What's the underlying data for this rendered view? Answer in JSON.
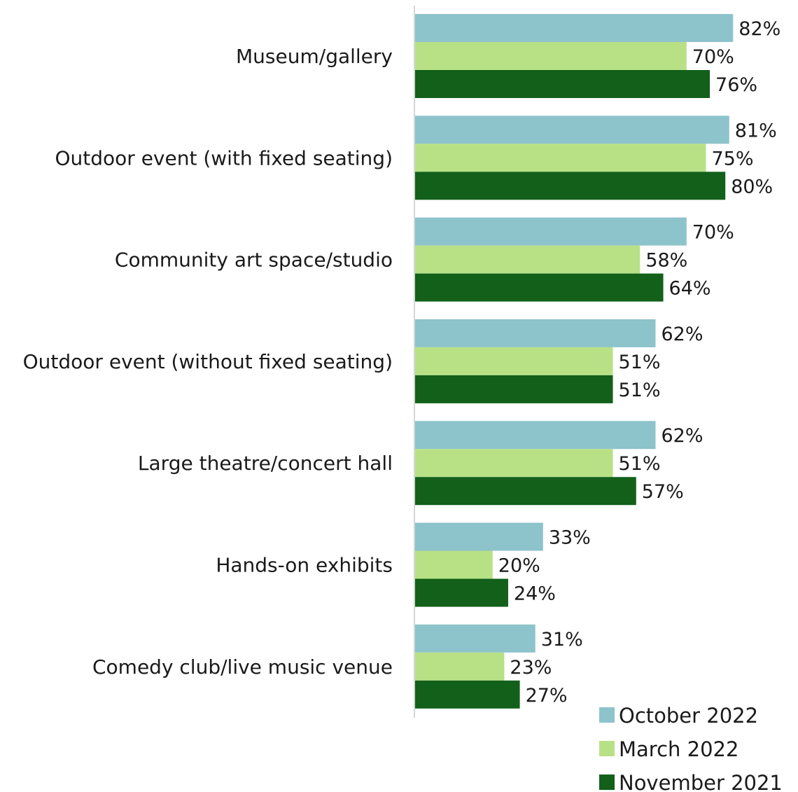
{
  "chart_data": {
    "type": "bar",
    "orientation": "horizontal",
    "categories": [
      "Museum/gallery",
      "Outdoor event (with fixed seating)",
      "Community art space/studio",
      "Outdoor event (without fixed seating)",
      "Large theatre/concert hall",
      "Hands-on exhibits",
      "Comedy club/live music venue"
    ],
    "series": [
      {
        "name": "October 2022",
        "color": "#8DC3CB",
        "values": [
          82,
          81,
          70,
          62,
          62,
          33,
          31
        ]
      },
      {
        "name": "March 2022",
        "color": "#B8E186",
        "values": [
          70,
          75,
          58,
          51,
          51,
          20,
          23
        ]
      },
      {
        "name": "November 2021",
        "color": "#12601A",
        "values": [
          76,
          80,
          64,
          51,
          57,
          24,
          27
        ]
      }
    ],
    "value_suffix": "%",
    "xlim": [
      0,
      100
    ],
    "grid": false,
    "legend_position": "bottom-right",
    "title": "",
    "xlabel": "",
    "ylabel": ""
  }
}
